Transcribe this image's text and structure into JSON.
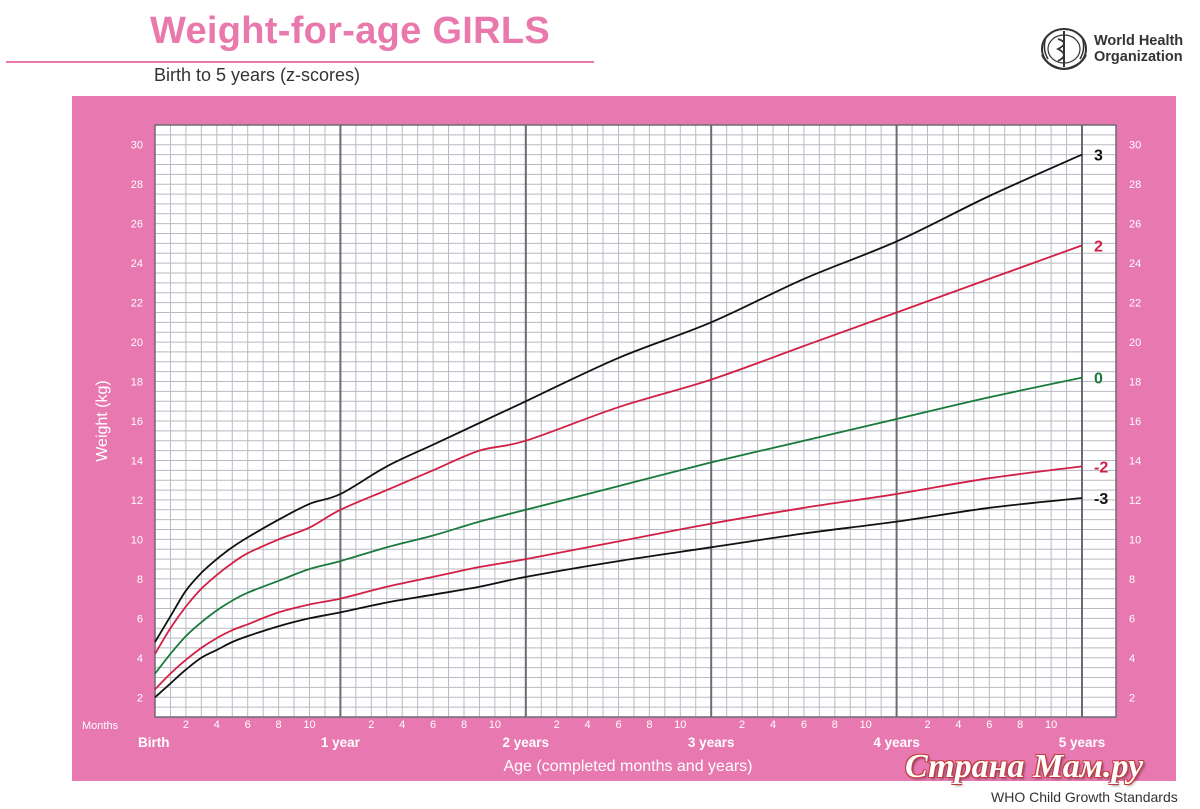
{
  "header": {
    "title": "Weight-for-age GIRLS",
    "subtitle": "Birth to 5 years (z-scores)"
  },
  "logo": {
    "icon": "who-emblem-icon",
    "line1": "World Health",
    "line2": "Organization"
  },
  "footer": {
    "watermark": "Страна Мам.ру",
    "credit": "WHO Child Growth Standards"
  },
  "colors": {
    "panel": "#e878b0",
    "title": "#e978ad",
    "grid": "#b9b9c3",
    "z3": "#111111",
    "z2": "#d21f45",
    "z0": "#1a7a3c"
  },
  "chart_data": {
    "type": "line",
    "xlabel": "Age (completed months and years)",
    "ylabel": "Weight (kg)",
    "x_unit_label": "Months",
    "xlim": [
      0,
      60
    ],
    "ylim": [
      1,
      31
    ],
    "grid": true,
    "y_ticks": [
      2,
      4,
      6,
      8,
      10,
      12,
      14,
      16,
      18,
      20,
      22,
      24,
      26,
      28,
      30
    ],
    "month_tick_labels": [
      "2",
      "4",
      "6",
      "8",
      "10"
    ],
    "year_labels": [
      {
        "month": 0,
        "label": "Birth"
      },
      {
        "month": 12,
        "label": "1 year"
      },
      {
        "month": 24,
        "label": "2 years"
      },
      {
        "month": 36,
        "label": "3 years"
      },
      {
        "month": 48,
        "label": "4 years"
      },
      {
        "month": 60,
        "label": "5 years"
      }
    ],
    "x": [
      0,
      1,
      2,
      3,
      4,
      5,
      6,
      8,
      10,
      12,
      15,
      18,
      21,
      24,
      30,
      36,
      42,
      48,
      54,
      60
    ],
    "series": [
      {
        "name": "3",
        "color": "#111111",
        "values": [
          4.8,
          6.1,
          7.4,
          8.3,
          9.0,
          9.6,
          10.1,
          11.0,
          11.8,
          12.3,
          13.7,
          14.8,
          15.9,
          17.0,
          19.2,
          21.0,
          23.2,
          25.1,
          27.4,
          29.5
        ]
      },
      {
        "name": "2",
        "color": "#d21f45",
        "values": [
          4.2,
          5.5,
          6.6,
          7.5,
          8.2,
          8.8,
          9.3,
          10.0,
          10.6,
          11.5,
          12.5,
          13.5,
          14.5,
          15.0,
          16.7,
          18.1,
          19.8,
          21.5,
          23.2,
          24.9
        ]
      },
      {
        "name": "0",
        "color": "#1a7a3c",
        "values": [
          3.2,
          4.2,
          5.1,
          5.8,
          6.4,
          6.9,
          7.3,
          7.9,
          8.5,
          8.9,
          9.6,
          10.2,
          10.9,
          11.5,
          12.7,
          13.9,
          15.0,
          16.1,
          17.2,
          18.2
        ]
      },
      {
        "name": "-2",
        "color": "#d21f45",
        "values": [
          2.4,
          3.2,
          3.9,
          4.5,
          5.0,
          5.4,
          5.7,
          6.3,
          6.7,
          7.0,
          7.6,
          8.1,
          8.6,
          9.0,
          9.9,
          10.8,
          11.6,
          12.3,
          13.1,
          13.7
        ]
      },
      {
        "name": "-3",
        "color": "#111111",
        "values": [
          2.0,
          2.7,
          3.4,
          4.0,
          4.4,
          4.8,
          5.1,
          5.6,
          6.0,
          6.3,
          6.8,
          7.2,
          7.6,
          8.1,
          8.9,
          9.6,
          10.3,
          10.9,
          11.6,
          12.1
        ]
      }
    ]
  }
}
